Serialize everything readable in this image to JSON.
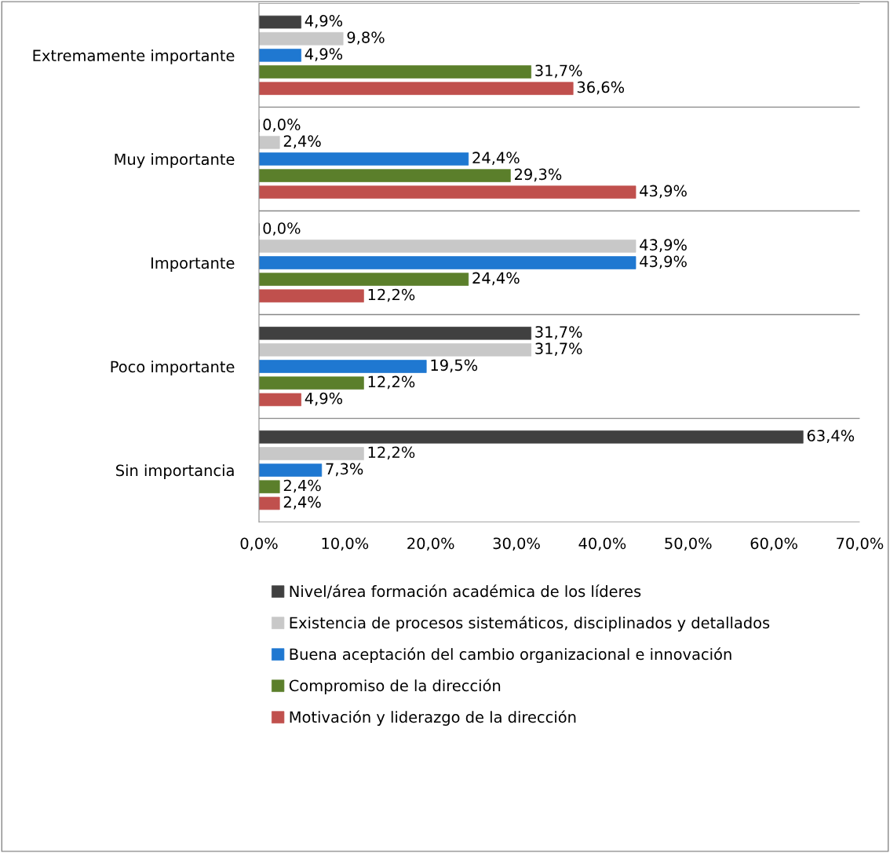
{
  "chart_data": {
    "type": "bar",
    "orientation": "horizontal",
    "categories": [
      "Extremamente importante",
      "Muy importante",
      "Importante",
      "Poco importante",
      "Sin importancia"
    ],
    "series": [
      {
        "name": "Nivel/área formación académica de los líderes",
        "color": "#404040",
        "values": [
          4.9,
          0.0,
          0.0,
          31.7,
          63.4
        ],
        "value_labels": [
          "4,9%",
          "0,0%",
          "0,0%",
          "31,7%",
          "63,4%"
        ]
      },
      {
        "name": "Existencia de procesos sistemáticos, disciplinados y detallados",
        "color": "#c8c8c8",
        "values": [
          9.8,
          2.4,
          43.9,
          31.7,
          12.2
        ],
        "value_labels": [
          "9,8%",
          "2,4%",
          "43,9%",
          "31,7%",
          "12,2%"
        ]
      },
      {
        "name": "Buena aceptación del cambio organizacional e innovación",
        "color": "#1f78d1",
        "values": [
          4.9,
          24.4,
          43.9,
          19.5,
          7.3
        ],
        "value_labels": [
          "4,9%",
          "24,4%",
          "43,9%",
          "19,5%",
          "7,3%"
        ]
      },
      {
        "name": "Compromiso de la dirección",
        "color": "#5b7f2b",
        "values": [
          31.7,
          29.3,
          24.4,
          12.2,
          2.4
        ],
        "value_labels": [
          "31,7%",
          "29,3%",
          "24,4%",
          "12,2%",
          "2,4%"
        ]
      },
      {
        "name": "Motivación y liderazgo de la dirección",
        "color": "#c0504d",
        "values": [
          36.6,
          43.9,
          12.2,
          4.9,
          2.4
        ],
        "value_labels": [
          "36,6%",
          "43,9%",
          "12,2%",
          "4,9%",
          "2,4%"
        ]
      }
    ],
    "xlim": [
      0,
      70
    ],
    "xticks": [
      {
        "value": 0,
        "label": "0,0%"
      },
      {
        "value": 10,
        "label": "10,0%"
      },
      {
        "value": 20,
        "label": "20,0%"
      },
      {
        "value": 30,
        "label": "30,0%"
      },
      {
        "value": 40,
        "label": "40,0%"
      },
      {
        "value": 50,
        "label": "50,0%"
      },
      {
        "value": 60,
        "label": "60,0%"
      },
      {
        "value": 70,
        "label": "70,0%"
      }
    ],
    "grid": "y",
    "legend": "bottom"
  }
}
